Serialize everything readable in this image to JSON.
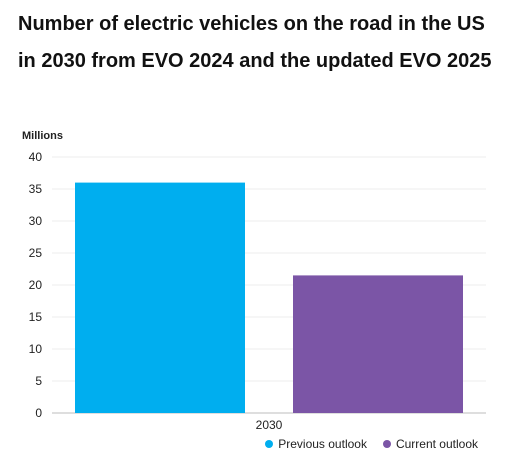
{
  "chart_data": {
    "type": "bar",
    "title": "Number of electric vehicles on the road in the US in 2030 from EVO 2024 and the updated EVO 2025",
    "ylabel": "Millions",
    "xlabel": "",
    "categories": [
      "2030"
    ],
    "series": [
      {
        "name": "Previous outlook",
        "values": [
          36
        ],
        "color": "#00AEEF"
      },
      {
        "name": "Current outlook",
        "values": [
          21.5
        ],
        "color": "#7B55A6"
      }
    ],
    "ylim": [
      0,
      40
    ],
    "yticks": [
      0,
      5,
      10,
      15,
      20,
      25,
      30,
      35,
      40
    ],
    "grid": true,
    "legend_position": "bottom-right"
  }
}
